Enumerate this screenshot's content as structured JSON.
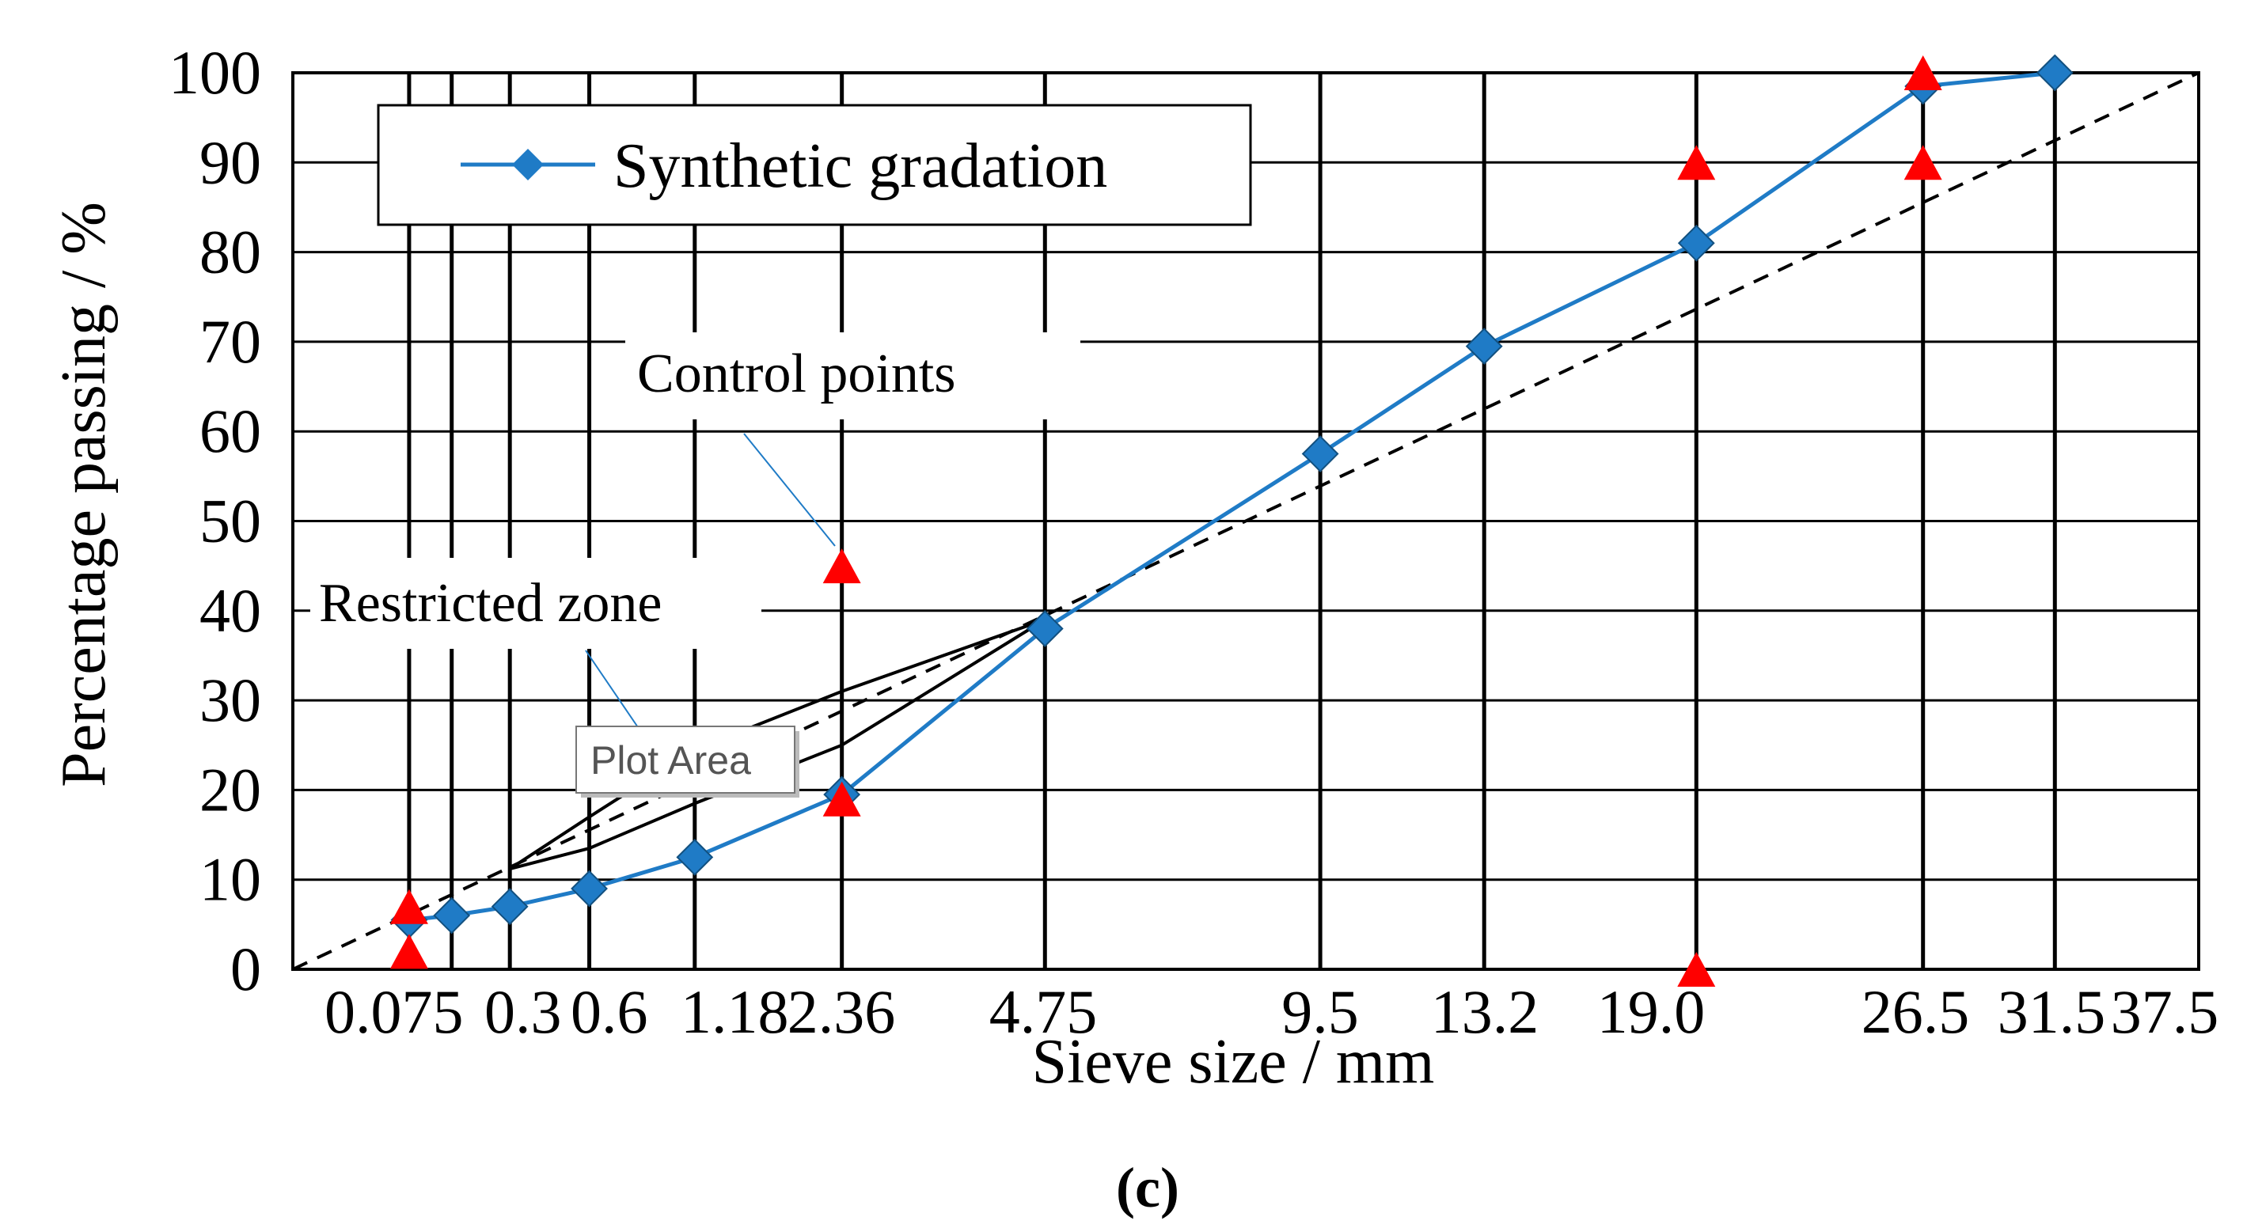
{
  "chart_data": {
    "type": "line",
    "title": "",
    "caption": "(c)",
    "xlabel": "Sieve size / mm",
    "ylabel": "Percentage passing / %",
    "xscale": "sieve size raised to 0.45 power",
    "ylim": [
      0,
      100
    ],
    "yticks": [
      0,
      10,
      20,
      30,
      40,
      50,
      60,
      70,
      80,
      90,
      100
    ],
    "xticks": [
      {
        "value": 0.075,
        "label": "0.075"
      },
      {
        "value": 0.3,
        "label": "0.3"
      },
      {
        "value": 0.6,
        "label": "0.6"
      },
      {
        "value": 1.18,
        "label": "1.18"
      },
      {
        "value": 2.36,
        "label": "2.36"
      },
      {
        "value": 4.75,
        "label": "4.75"
      },
      {
        "value": 9.5,
        "label": "9.5"
      },
      {
        "value": 13.2,
        "label": "13.2"
      },
      {
        "value": 19.0,
        "label": "19.0"
      },
      {
        "value": 26.5,
        "label": "26.5"
      },
      {
        "value": 31.5,
        "label": "31.5"
      },
      {
        "value": 37.5,
        "label": "37.5"
      }
    ],
    "gridlines_x": [
      0.075,
      0.15,
      0.3,
      0.6,
      1.18,
      2.36,
      4.75,
      9.5,
      13.2,
      19.0,
      26.5,
      31.5
    ],
    "grid": true,
    "legend": {
      "entries": [
        "Synthetic gradation"
      ],
      "position": "top-left"
    },
    "series": [
      {
        "name": "Synthetic gradation",
        "color": "#1F7BC6",
        "marker": "diamond",
        "x": [
          0.075,
          0.15,
          0.3,
          0.6,
          1.18,
          2.36,
          4.75,
          9.5,
          13.2,
          19.0,
          26.5,
          31.5
        ],
        "y": [
          5.5,
          6,
          7,
          9,
          12.5,
          19.5,
          38,
          57.5,
          69.5,
          81,
          98.5,
          100
        ]
      }
    ],
    "max_density_line": {
      "style": "dashed",
      "color": "#000000",
      "x": [
        0,
        37.5
      ],
      "y": [
        0,
        100
      ]
    },
    "control_points": {
      "marker": "triangle",
      "color": "#FF0000",
      "points": [
        {
          "x": 0.075,
          "y": 2
        },
        {
          "x": 0.075,
          "y": 7
        },
        {
          "x": 2.36,
          "y": 45
        },
        {
          "x": 2.36,
          "y": 19
        },
        {
          "x": 19.0,
          "y": 0
        },
        {
          "x": 19.0,
          "y": 90
        },
        {
          "x": 26.5,
          "y": 90
        },
        {
          "x": 26.5,
          "y": 100
        }
      ]
    },
    "restricted_zone": {
      "color": "#000000",
      "x": [
        0.3,
        0.6,
        1.18,
        2.36,
        4.75
      ],
      "upper": [
        11.2,
        17.0,
        24.5,
        31.0,
        39.0
      ],
      "lower": [
        11.2,
        13.5,
        18.5,
        25.0,
        39.0
      ]
    },
    "annotations": [
      {
        "text": "Control points",
        "points_to": "control point at 2.36 mm"
      },
      {
        "text": "Restricted zone",
        "points_to": "restricted zone"
      }
    ],
    "tooltip": "Plot Area"
  }
}
